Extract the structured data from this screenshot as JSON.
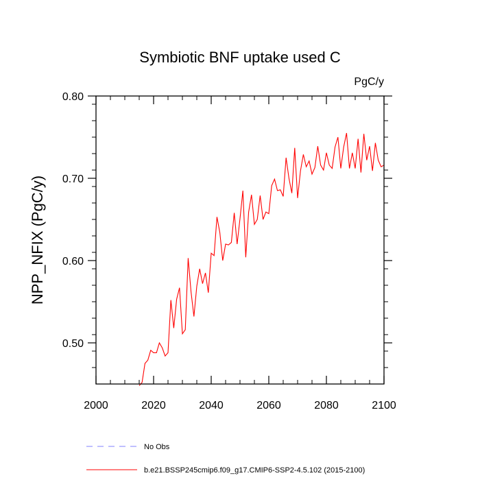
{
  "chart_data": {
    "type": "line",
    "title": "Symbiotic BNF uptake used C",
    "units_label": "PgC/y",
    "ylabel": "NPP_NFIX  (PgC/y)",
    "xlabel": "",
    "xlim": [
      2000,
      2100
    ],
    "ylim": [
      0.45,
      0.8
    ],
    "x_ticks": [
      2000,
      2020,
      2040,
      2060,
      2080,
      2100
    ],
    "y_ticks": [
      0.5,
      0.6,
      0.7,
      0.8
    ],
    "y_tick_labels": [
      "0.50",
      "0.60",
      "0.70",
      "0.80"
    ],
    "x_minor_step": 5,
    "y_minor_step": 0.02,
    "grid": false,
    "legend_position": "bottom-left",
    "series": [
      {
        "name": "No Obs",
        "color": "#8080ff",
        "style": "dashed",
        "x": [],
        "values": []
      },
      {
        "name": "b.e21.BSSP245cmip6.f09_g17.CMIP6-SSP2-4.5.102 (2015-2100)",
        "color": "#ff0000",
        "style": "solid",
        "x": [
          2015,
          2016,
          2017,
          2018,
          2019,
          2020,
          2021,
          2022,
          2023,
          2024,
          2025,
          2026,
          2027,
          2028,
          2029,
          2030,
          2031,
          2032,
          2033,
          2034,
          2035,
          2036,
          2037,
          2038,
          2039,
          2040,
          2041,
          2042,
          2043,
          2044,
          2045,
          2046,
          2047,
          2048,
          2049,
          2050,
          2051,
          2052,
          2053,
          2054,
          2055,
          2056,
          2057,
          2058,
          2059,
          2060,
          2061,
          2062,
          2063,
          2064,
          2065,
          2066,
          2067,
          2068,
          2069,
          2070,
          2071,
          2072,
          2073,
          2074,
          2075,
          2076,
          2077,
          2078,
          2079,
          2080,
          2081,
          2082,
          2083,
          2084,
          2085,
          2086,
          2087,
          2088,
          2089,
          2090,
          2091,
          2092,
          2093,
          2094,
          2095,
          2096,
          2097,
          2098,
          2099,
          2100
        ],
        "values": [
          0.448,
          0.452,
          0.475,
          0.479,
          0.491,
          0.488,
          0.488,
          0.5,
          0.494,
          0.484,
          0.488,
          0.552,
          0.518,
          0.553,
          0.567,
          0.511,
          0.516,
          0.603,
          0.562,
          0.532,
          0.569,
          0.59,
          0.572,
          0.585,
          0.561,
          0.609,
          0.606,
          0.653,
          0.634,
          0.6,
          0.62,
          0.619,
          0.622,
          0.658,
          0.62,
          0.651,
          0.685,
          0.604,
          0.659,
          0.68,
          0.644,
          0.65,
          0.679,
          0.65,
          0.659,
          0.657,
          0.691,
          0.699,
          0.685,
          0.686,
          0.678,
          0.725,
          0.7,
          0.682,
          0.737,
          0.676,
          0.709,
          0.729,
          0.714,
          0.721,
          0.705,
          0.713,
          0.739,
          0.716,
          0.71,
          0.731,
          0.716,
          0.712,
          0.738,
          0.75,
          0.712,
          0.738,
          0.755,
          0.712,
          0.731,
          0.712,
          0.748,
          0.707,
          0.754,
          0.722,
          0.739,
          0.709,
          0.743,
          0.722,
          0.714,
          0.716
        ]
      }
    ]
  }
}
